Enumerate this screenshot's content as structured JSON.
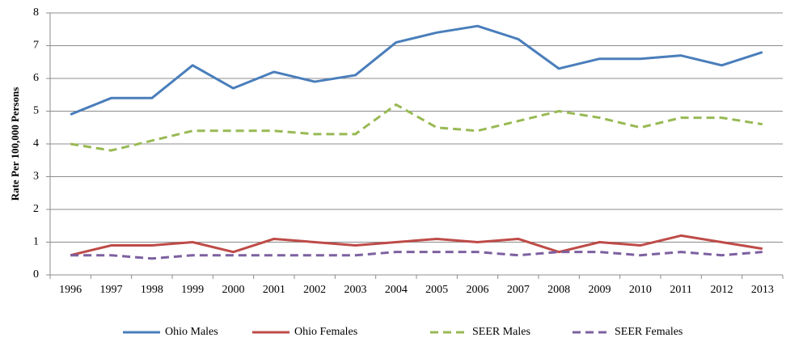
{
  "chart_data": {
    "type": "line",
    "y_label": "Rate Per 100,000 Persons",
    "categories": [
      "1996",
      "1997",
      "1998",
      "1999",
      "2000",
      "2001",
      "2002",
      "2003",
      "2004",
      "2005",
      "2006",
      "2007",
      "2008",
      "2009",
      "2010",
      "2011",
      "2012",
      "2013"
    ],
    "series": [
      {
        "name": "Ohio Males",
        "color": "#4a7ebb",
        "dashed": false,
        "values": [
          4.9,
          5.4,
          5.4,
          6.4,
          5.7,
          6.2,
          5.9,
          6.1,
          7.1,
          7.4,
          7.6,
          7.2,
          6.3,
          6.6,
          6.6,
          6.7,
          6.4,
          6.8
        ]
      },
      {
        "name": "Ohio Females",
        "color": "#be4b48",
        "dashed": false,
        "values": [
          0.6,
          0.9,
          0.9,
          1.0,
          0.7,
          1.1,
          1.0,
          0.9,
          1.0,
          1.1,
          1.0,
          1.1,
          0.7,
          1.0,
          0.9,
          1.2,
          1.0,
          0.8
        ]
      },
      {
        "name": "SEER Males",
        "color": "#98b954",
        "dashed": true,
        "values": [
          4.0,
          3.8,
          4.1,
          4.4,
          4.4,
          4.4,
          4.3,
          4.3,
          5.2,
          4.5,
          4.4,
          4.7,
          5.0,
          4.8,
          4.5,
          4.8,
          4.8,
          4.6
        ]
      },
      {
        "name": "SEER Females",
        "color": "#7d60a0",
        "dashed": true,
        "values": [
          0.6,
          0.6,
          0.5,
          0.6,
          0.6,
          0.6,
          0.6,
          0.6,
          0.7,
          0.7,
          0.7,
          0.6,
          0.7,
          0.7,
          0.6,
          0.7,
          0.6,
          0.7
        ]
      }
    ],
    "ylim": [
      0,
      8
    ],
    "yticks": [
      0,
      1,
      2,
      3,
      4,
      5,
      6,
      7,
      8
    ],
    "grid": true,
    "legend": "bottom"
  }
}
